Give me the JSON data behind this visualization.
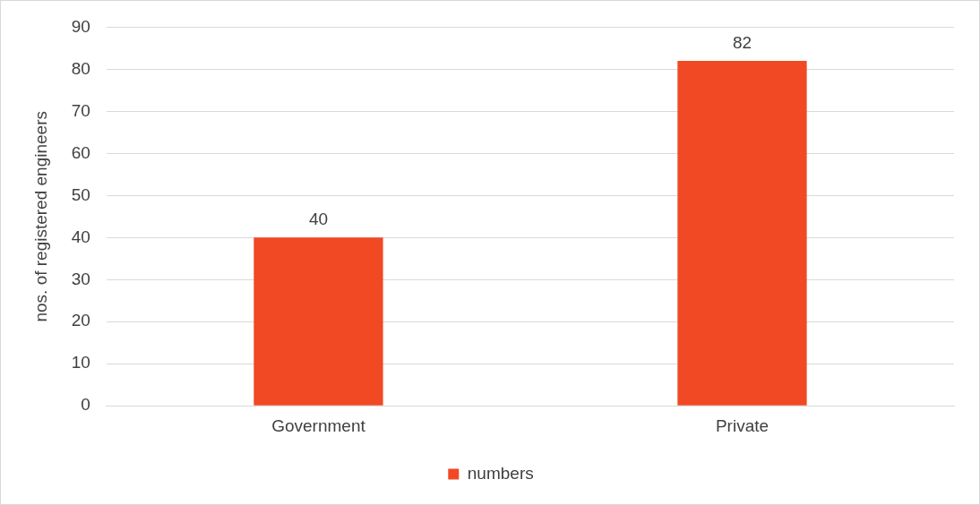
{
  "chart_data": {
    "type": "bar",
    "ylabel": "nos. of registered engineers",
    "categories": [
      "Government",
      "Private"
    ],
    "series": [
      {
        "name": "numbers",
        "color": "#f04923",
        "values": [
          40,
          82
        ]
      }
    ],
    "ylim": [
      0,
      90
    ],
    "yticks": [
      0,
      10,
      20,
      30,
      40,
      50,
      60,
      70,
      80,
      90
    ],
    "grid": "y",
    "legend": "bottom",
    "data_labels": true
  }
}
